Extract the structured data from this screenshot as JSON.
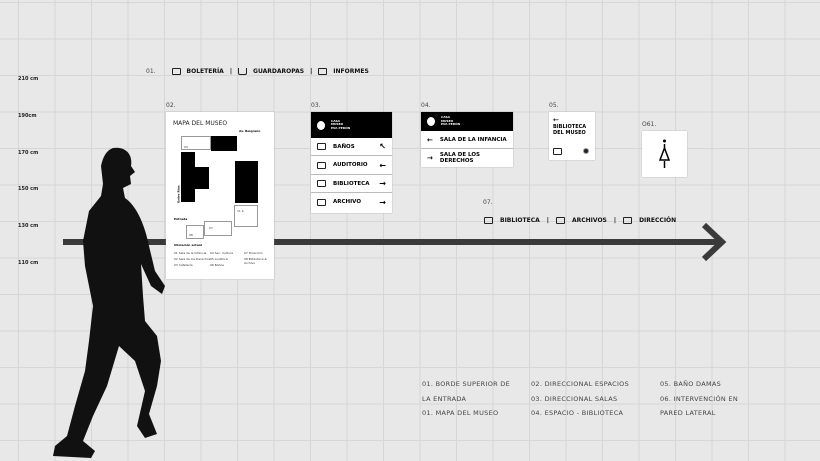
{
  "heights": [
    "210 cm",
    "190cm",
    "170 cm",
    "150 cm",
    "130 cm",
    "110 cm"
  ],
  "sign01": {
    "number": "01.",
    "items": [
      {
        "icon": "ticket-icon",
        "label": "BOLETERÍA"
      },
      {
        "icon": "hanger-icon",
        "label": "GUARDAROPAS"
      },
      {
        "icon": "desk-icon",
        "label": "INFORMES"
      }
    ]
  },
  "sign02": {
    "number": "02.",
    "title": "MAPA DEL MUSEO",
    "street_top": "Av. Belgrano",
    "street_side": "Entre Ríos",
    "entrance": "Entrada",
    "rooms": [
      "03",
      "04",
      "05",
      "02",
      "01",
      "06",
      "07",
      "08",
      "11 b"
    ],
    "legend_current": "Ubicación actual",
    "legend": [
      "01 Sala de la Infancia",
      "02 Sala de los Derechos",
      "03 Cafetería",
      "04 Sec. Cultura",
      "05 Auditorio",
      "06 Baños",
      "07 Dirección",
      "08 Biblioteca & Archivo"
    ]
  },
  "sign03": {
    "number": "03.",
    "logo_text": [
      "CASA",
      "MUSEO",
      "EVA PERÓN"
    ],
    "rows": [
      {
        "icon": "restroom-icon",
        "label": "BAÑOS",
        "arrow": "↖"
      },
      {
        "icon": "auditorium-icon",
        "label": "AUDITORIO",
        "arrow": "←"
      },
      {
        "icon": "book-icon",
        "label": "BIBLIOTECA",
        "arrow": "→"
      },
      {
        "icon": "folder-icon",
        "label": "ARCHIVO",
        "arrow": "→"
      }
    ]
  },
  "sign04": {
    "number": "04.",
    "logo_text": [
      "CASA",
      "MUSEO",
      "EVA PERÓN"
    ],
    "rows": [
      {
        "arrow": "←",
        "label": "SALA DE LA INFANCIA"
      },
      {
        "arrow": "→",
        "label": "SALA DE LOS DERECHOS"
      }
    ]
  },
  "sign05": {
    "number": "05.",
    "arrow": "←",
    "title_lines": [
      "BIBLIOTECA",
      "DEL MUSEO"
    ]
  },
  "sign06": {
    "number": "O61."
  },
  "sign07": {
    "number": "07.",
    "items": [
      {
        "icon": "book-icon",
        "label": "BIBLIOTECA"
      },
      {
        "icon": "folder-icon",
        "label": "ARCHIVOS"
      },
      {
        "icon": "desk-icon",
        "label": "DIRECCIÓN"
      }
    ]
  },
  "captions": [
    [
      "01. BORDE SUPERIOR DE",
      "LA ENTRADA",
      "01. MAPA DEL MUSEO"
    ],
    [
      "02. DIRECCIONAL ESPACIOS",
      "03. DIRECCIONAL SALAS",
      "04. ESPACIO - BIBLIOTECA"
    ],
    [
      "05. BAÑO DAMAS",
      "06. INTERVENCIÓN EN",
      "PARED LATERAL"
    ]
  ],
  "colors": {
    "background": "#e8e8e8",
    "arrow": "#3a3a3a",
    "sign": "#000000"
  }
}
